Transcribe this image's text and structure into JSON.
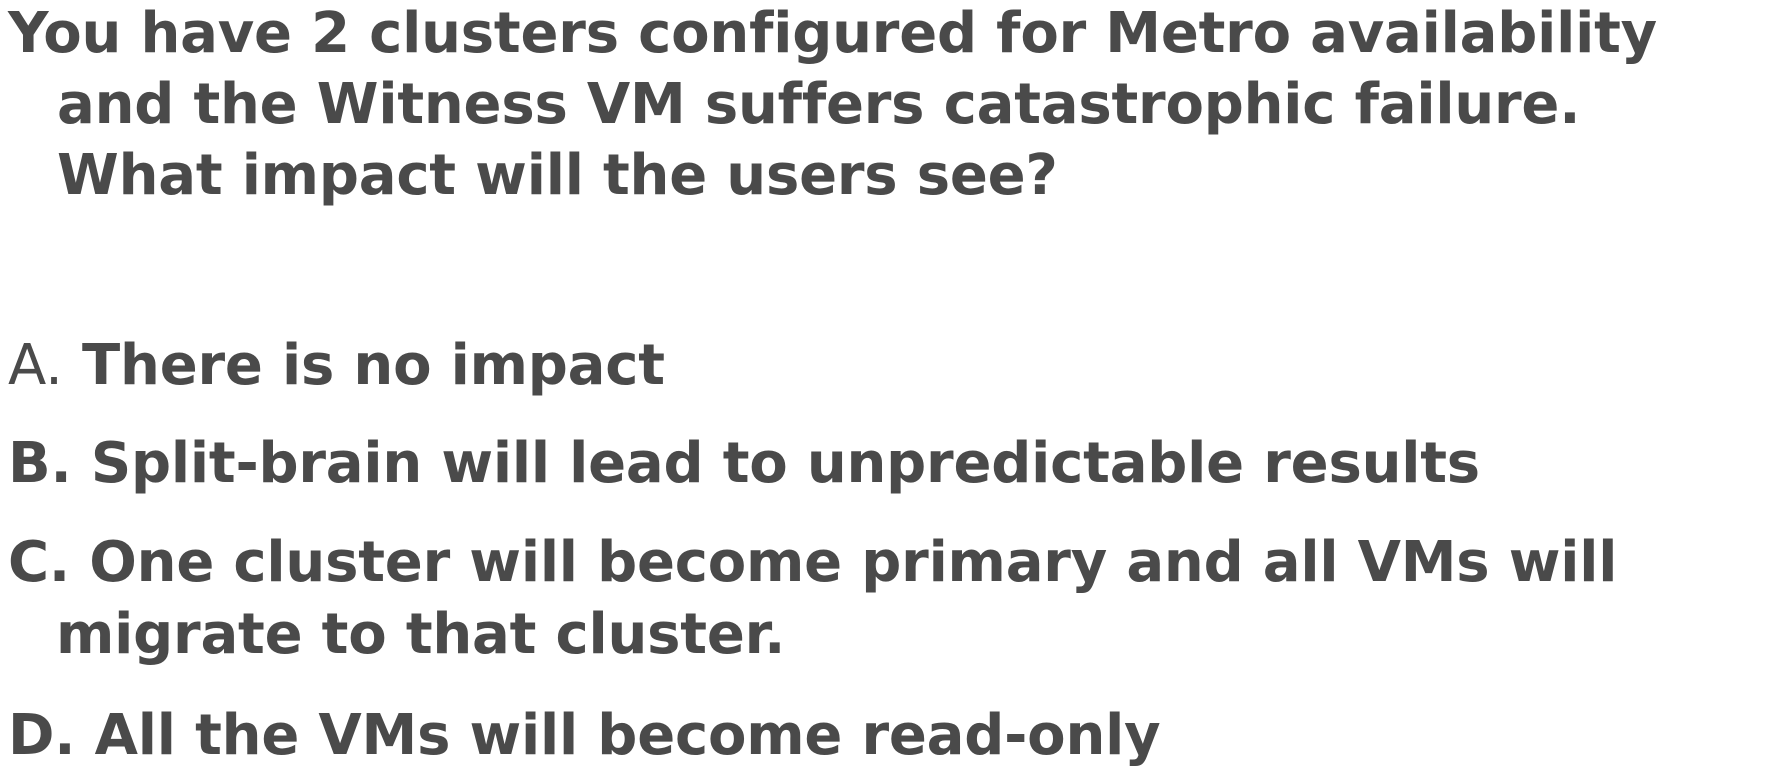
{
  "question": {
    "text": "You have 2 clusters configured for Metro availability and the Witness VM suffers catastrophic failure. What impact will the users see?"
  },
  "options": [
    {
      "letter": "A.",
      "text": "There is no impact"
    },
    {
      "letter": "B.",
      "text": "Split-brain will lead to unpredictable results"
    },
    {
      "letter": "C.",
      "text": "One cluster will become primary and all VMs will migrate to that cluster."
    },
    {
      "letter": "D.",
      "text": "All the VMs will become read-only"
    }
  ],
  "colors": {
    "text": "#4a4a4a",
    "background": "#ffffff"
  }
}
